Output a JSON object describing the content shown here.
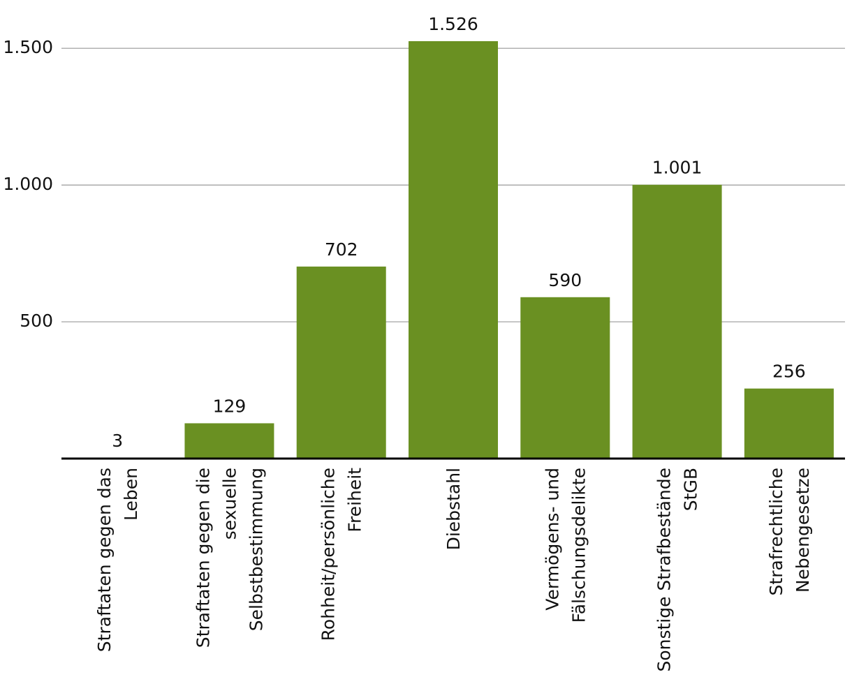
{
  "chart_data": {
    "type": "bar",
    "categories": [
      [
        "Straftaten gegen das",
        "Leben"
      ],
      [
        "Straftaten gegen die",
        "sexuelle",
        "Selbstbestimmung"
      ],
      [
        "Rohheit/persönliche",
        "Freiheit"
      ],
      [
        "Diebstahl"
      ],
      [
        "Vermögens- und",
        "Fälschungsdelikte"
      ],
      [
        "Sonstige Strafbestände",
        "StGB"
      ],
      [
        "Strafrechtliche",
        "Nebengesetze"
      ]
    ],
    "values": [
      3,
      129,
      702,
      1526,
      590,
      1001,
      256
    ],
    "value_labels": [
      "3",
      "129",
      "702",
      "1.526",
      "590",
      "1.001",
      "256"
    ],
    "color": "#6a9022",
    "ylim": [
      0,
      1600
    ],
    "yticks": [
      500,
      {
        "value": 1000,
        "label": "1.000"
      },
      {
        "value": 1500,
        "label": "1.500"
      }
    ],
    "grid": true
  }
}
